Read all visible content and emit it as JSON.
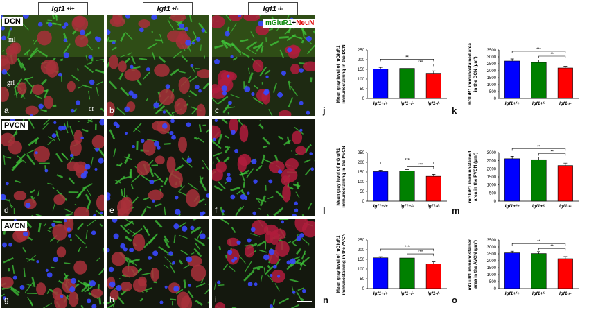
{
  "columns": [
    {
      "base": "Igf1",
      "sup": "+/+"
    },
    {
      "base": "Igf1",
      "sup": "+/-"
    },
    {
      "base": "Igf1",
      "sup": "-/-"
    }
  ],
  "rows": [
    "DCN",
    "PVCN",
    "AVCN"
  ],
  "stain": {
    "first": "mGluR1",
    "plus": "+",
    "second": "NeuN"
  },
  "layers": {
    "ml": "ml",
    "grl": "grl",
    "cr": "cr"
  },
  "micro_letters": [
    "a",
    "b",
    "c",
    "d",
    "e",
    "f",
    "g",
    "h",
    "i"
  ],
  "chart_letters": [
    "j",
    "k",
    "l",
    "m",
    "n",
    "o"
  ],
  "colors": {
    "wt": "#0000ff",
    "het": "#008000",
    "ko": "#ff0000",
    "neun": "#ff2020",
    "mglur": "#30c030"
  },
  "chart_data": [
    {
      "type": "bar",
      "panel": "j",
      "categories": [
        "Igf1+/+",
        "Igf1+/-",
        "Igf1-/-"
      ],
      "values": [
        152,
        155,
        130
      ],
      "errors": [
        8,
        8,
        12
      ],
      "ylabel": [
        "Mean gray level of mGluR1",
        "immunostaining in the DCN"
      ],
      "ylim": [
        0,
        250
      ],
      "yticks": [
        0,
        50,
        100,
        150,
        200,
        250
      ],
      "brackets": [
        {
          "from": 0,
          "to": 2,
          "label": "**"
        },
        {
          "from": 1,
          "to": 2,
          "label": "***"
        }
      ]
    },
    {
      "type": "bar",
      "panel": "k",
      "categories": [
        "Igf1+/+",
        "Igf1+/-",
        "Igf1-/-"
      ],
      "values": [
        2700,
        2600,
        2200
      ],
      "errors": [
        150,
        180,
        120
      ],
      "ylabel": [
        "mGluR1 immunostained area",
        "in the DCN (µm²)"
      ],
      "ylim": [
        0,
        3500
      ],
      "yticks": [
        0,
        500,
        1000,
        1500,
        2000,
        2500,
        3000,
        3500
      ],
      "brackets": [
        {
          "from": 0,
          "to": 2,
          "label": "***"
        },
        {
          "from": 1,
          "to": 2,
          "label": "**"
        }
      ]
    },
    {
      "type": "bar",
      "panel": "l",
      "categories": [
        "Igf1+/+",
        "Igf1+/-",
        "Igf1-/-"
      ],
      "values": [
        152,
        155,
        128
      ],
      "errors": [
        7,
        8,
        10
      ],
      "ylabel": [
        "Mean gray level of mGluR1",
        "immunostaining in the PVCN"
      ],
      "ylim": [
        0,
        250
      ],
      "yticks": [
        0,
        50,
        100,
        150,
        200,
        250
      ],
      "brackets": [
        {
          "from": 0,
          "to": 2,
          "label": "***"
        },
        {
          "from": 1,
          "to": 2,
          "label": "***"
        }
      ]
    },
    {
      "type": "bar",
      "panel": "m",
      "categories": [
        "Igf1+/+",
        "Igf1+/-",
        "Igf1-/-"
      ],
      "values": [
        2620,
        2560,
        2200
      ],
      "errors": [
        150,
        170,
        150
      ],
      "ylabel": [
        "mGluR1 immunostained",
        "area in the PVCN (µm²)"
      ],
      "ylim": [
        0,
        3000
      ],
      "yticks": [
        0,
        500,
        1000,
        1500,
        2000,
        2500,
        3000
      ],
      "brackets": [
        {
          "from": 0,
          "to": 2,
          "label": "**"
        },
        {
          "from": 1,
          "to": 2,
          "label": "**"
        }
      ]
    },
    {
      "type": "bar",
      "panel": "n",
      "categories": [
        "Igf1+/+",
        "Igf1+/-",
        "Igf1-/-"
      ],
      "values": [
        158,
        157,
        127
      ],
      "errors": [
        6,
        6,
        10
      ],
      "ylabel": [
        "Mean gray level of mGluR1",
        "immunostaining in the AVCN"
      ],
      "ylim": [
        0,
        250
      ],
      "yticks": [
        0,
        50,
        100,
        150,
        200,
        250
      ],
      "brackets": [
        {
          "from": 0,
          "to": 2,
          "label": "***"
        },
        {
          "from": 1,
          "to": 2,
          "label": "***"
        }
      ]
    },
    {
      "type": "bar",
      "panel": "o",
      "categories": [
        "Igf1+/+",
        "Igf1+/-",
        "Igf1-/-"
      ],
      "values": [
        2570,
        2520,
        2150
      ],
      "errors": [
        120,
        140,
        150
      ],
      "ylabel": [
        "mGluR1 immunostained",
        "area in the AVCN (µm²)"
      ],
      "ylim": [
        0,
        3500
      ],
      "yticks": [
        0,
        500,
        1000,
        1500,
        2000,
        2500,
        3000,
        3500
      ],
      "brackets": [
        {
          "from": 0,
          "to": 2,
          "label": "**"
        },
        {
          "from": 1,
          "to": 2,
          "label": "**"
        }
      ]
    }
  ]
}
